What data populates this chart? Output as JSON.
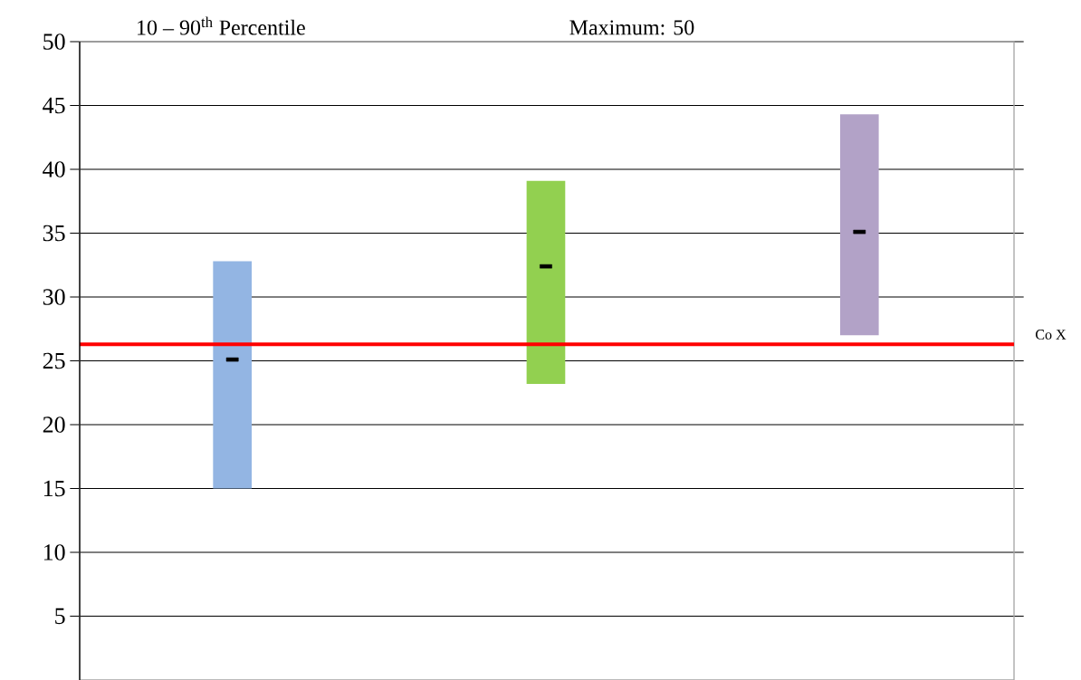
{
  "chart_data": {
    "type": "bar",
    "title": "10 – 90$^{th}$ Percentile",
    "annotations": [
      "Maximum: 50"
    ],
    "categories": [
      null,
      null,
      null
    ],
    "series": [
      {
        "base": [
          15,
          23.2,
          27
        ],
        "values": [
          17.8,
          15.9,
          17.3
        ],
        "colors": [
          "#93b5e3",
          "#92d050",
          "#b2a2c7"
        ]
      },
      {
        "type": "scatter",
        "marker": "square",
        "color": "#000000",
        "values": [
          25.1,
          32.4,
          35.1
        ]
      }
    ],
    "ylim": [
      0,
      50
    ],
    "yticks": [
      5,
      10,
      15,
      20,
      25,
      30,
      35,
      40,
      45,
      50
    ],
    "grid": "y",
    "ref_lines": [
      {
        "axis": "y",
        "value": 26.3,
        "label": "Co X",
        "color": "#ff0000"
      }
    ]
  }
}
